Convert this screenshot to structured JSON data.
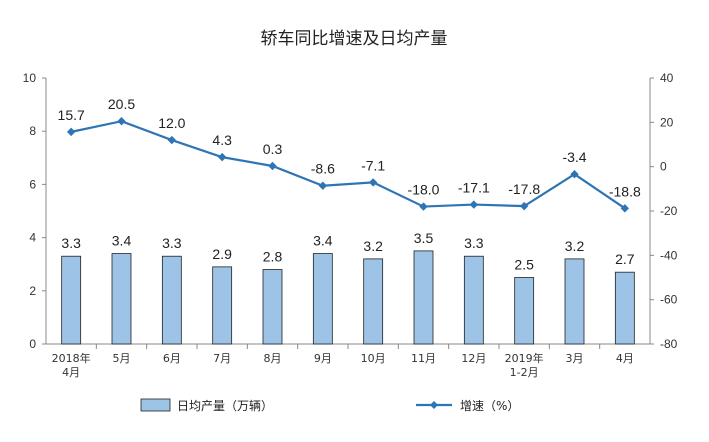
{
  "chart_data": {
    "type": "bar+line",
    "title": "轿车同比增速及日均产量",
    "categories": [
      [
        "2018年",
        "4月"
      ],
      [
        "5月"
      ],
      [
        "6月"
      ],
      [
        "7月"
      ],
      [
        "8月"
      ],
      [
        "9月"
      ],
      [
        "10月"
      ],
      [
        "11月"
      ],
      [
        "12月"
      ],
      [
        "2019年",
        "1-2月"
      ],
      [
        "3月"
      ],
      [
        "4月"
      ]
    ],
    "series": [
      {
        "name": "日均产量（万辆）",
        "kind": "bar",
        "axis": "left",
        "color": "#9DC3E6",
        "values": [
          3.3,
          3.4,
          3.3,
          2.9,
          2.8,
          3.4,
          3.2,
          3.5,
          3.3,
          2.5,
          3.2,
          2.7
        ],
        "labels": [
          "3.3",
          "3.4",
          "3.3",
          "2.9",
          "2.8",
          "3.4",
          "3.2",
          "3.5",
          "3.3",
          "2.5",
          "3.2",
          "2.7"
        ]
      },
      {
        "name": "增速（%）",
        "kind": "line",
        "axis": "right",
        "color": "#2E75B6",
        "values": [
          15.7,
          20.5,
          12.0,
          4.3,
          0.3,
          -8.6,
          -7.1,
          -18.0,
          -17.1,
          -17.8,
          -3.4,
          -18.8
        ],
        "labels": [
          "15.7",
          "20.5",
          "12.0",
          "4.3",
          "0.3",
          "-8.6",
          "-7.1",
          "-18.0",
          "-17.1",
          "-17.8",
          "-3.4",
          "-18.8"
        ]
      }
    ],
    "yleft": {
      "range": [
        0,
        10
      ],
      "ticks": [
        "0",
        "2",
        "4",
        "6",
        "8",
        "10"
      ]
    },
    "yright": {
      "range": [
        -80,
        40
      ],
      "ticks": [
        "-80",
        "-60",
        "-40",
        "-20",
        "0",
        "20",
        "40"
      ]
    },
    "grid": false,
    "legend_position": "bottom"
  }
}
